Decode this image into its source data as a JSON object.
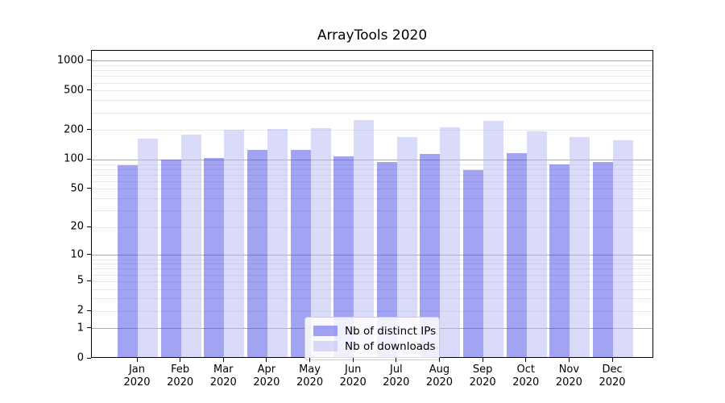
{
  "title": "ArrayTools 2020",
  "chart_data": {
    "type": "bar",
    "title": "ArrayTools 2020",
    "scale": "log1p",
    "categories": [
      "Jan",
      "Feb",
      "Mar",
      "Apr",
      "May",
      "Jun",
      "Jul",
      "Aug",
      "Sep",
      "Oct",
      "Nov",
      "Dec"
    ],
    "category_year": "2020",
    "series": [
      {
        "name": "Nb of distinct IPs",
        "color": "rgba(71,71,231,0.5)",
        "values": [
          85,
          97,
          100,
          123,
          123,
          104,
          91,
          110,
          76,
          112,
          86,
          91
        ]
      },
      {
        "name": "Nb of downloads",
        "color": "rgba(181,181,243,0.5)",
        "values": [
          160,
          175,
          195,
          200,
          203,
          245,
          165,
          206,
          240,
          189,
          164,
          154
        ]
      }
    ],
    "yticks": [
      0,
      1,
      2,
      5,
      10,
      20,
      50,
      100,
      200,
      500,
      1000
    ],
    "major_gridline_values": [
      1,
      10,
      100,
      1000
    ],
    "ylim": [
      0,
      1240
    ],
    "xlabel": "",
    "ylabel": "",
    "grid": true,
    "legend_position": "lower center-left inside plot",
    "colors": {
      "bar_distinct_ips": "#a3a3f3",
      "bar_downloads": "#dadaf9",
      "major_gridline": "#ababab",
      "minor_gridline": "#e8e8e8",
      "axis": "#000000",
      "text": "#000000"
    }
  },
  "legend": {
    "entries": [
      "Nb of distinct IPs",
      "Nb of downloads"
    ]
  }
}
